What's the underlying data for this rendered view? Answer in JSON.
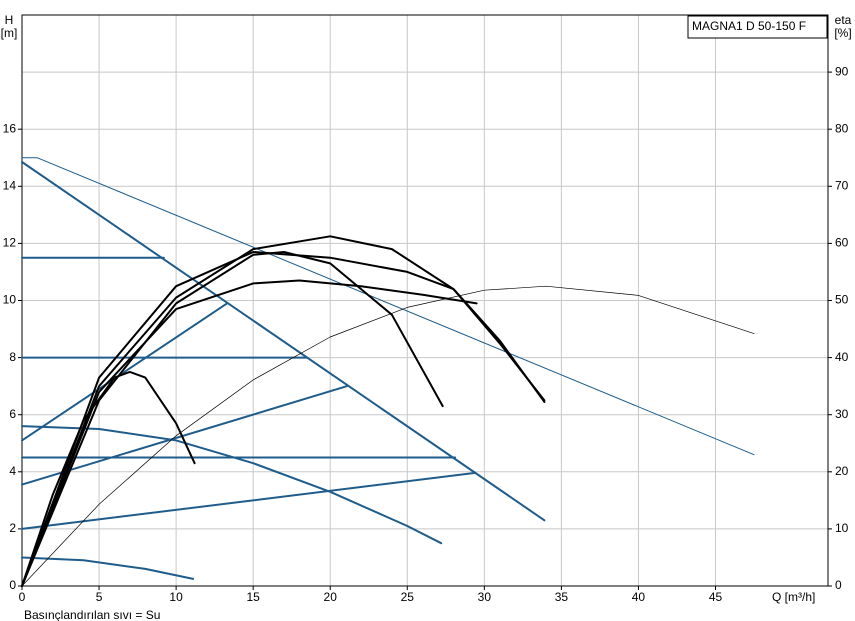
{
  "chart_data": {
    "type": "line",
    "title": "MAGNA1 D 50-150 F",
    "xlabel": "Q [m³/h]",
    "ylabel": [
      "H",
      "[m]"
    ],
    "y2label": [
      "eta",
      "[%]"
    ],
    "footnote": "Basınçlandırılan sıvı = Su",
    "xlim": [
      0,
      52.3
    ],
    "xticks": [
      0,
      5,
      10,
      15,
      20,
      25,
      30,
      35,
      40,
      45
    ],
    "ylim": [
      0,
      20
    ],
    "yticks": [
      0,
      2,
      4,
      6,
      8,
      10,
      12,
      14,
      16
    ],
    "y2lim": [
      0,
      100
    ],
    "y2ticks": [
      0,
      10,
      20,
      30,
      40,
      50,
      60,
      70,
      80,
      90
    ],
    "grid": true,
    "series": [
      {
        "color": "#1f5c8b",
        "linewidth": 2,
        "x": [
          0,
          33.9
        ],
        "values": [
          14.85,
          2.3
        ]
      },
      {
        "color": "#1f5c8b",
        "linewidth": 2,
        "x": [
          0,
          9.2
        ],
        "values": [
          11.5,
          11.5
        ]
      },
      {
        "color": "#1f5c8b",
        "linewidth": 2,
        "x": [
          0,
          18.5
        ],
        "values": [
          8,
          8
        ]
      },
      {
        "color": "#1f5c8b",
        "linewidth": 2,
        "x": [
          0,
          28.1
        ],
        "values": [
          4.5,
          4.5
        ]
      },
      {
        "color": "#1f5c8b",
        "linewidth": 2,
        "x": [
          0,
          13.3
        ],
        "values": [
          5.1,
          9.9
        ]
      },
      {
        "color": "#1f5c8b",
        "linewidth": 2,
        "x": [
          0,
          21.1
        ],
        "values": [
          3.55,
          7.0
        ]
      },
      {
        "color": "#1f5c8b",
        "linewidth": 2,
        "x": [
          0,
          29.4
        ],
        "values": [
          2.0,
          3.96
        ]
      },
      {
        "color": "#1f5c8b",
        "linewidth": 2,
        "x": [
          0,
          5,
          10,
          15,
          20,
          25,
          27.2
        ],
        "values": [
          5.6,
          5.5,
          5.1,
          4.3,
          3.3,
          2.1,
          1.5
        ]
      },
      {
        "color": "#1f5c8b",
        "linewidth": 2,
        "x": [
          0,
          4,
          8,
          11.1
        ],
        "values": [
          1.0,
          0.9,
          0.6,
          0.25
        ]
      },
      {
        "color": "#1f5c8b",
        "linewidth": 1,
        "x": [
          0,
          1,
          47.5
        ],
        "values": [
          15,
          15,
          4.6
        ]
      },
      {
        "color": "#000000",
        "linewidth": 0.7,
        "axis": "y2",
        "x": [
          0,
          5,
          10,
          15,
          20,
          25,
          30,
          34,
          40,
          47.5
        ],
        "values": [
          0,
          14.3,
          26.3,
          36.1,
          43.6,
          48.8,
          51.8,
          52.5,
          50.9,
          44.2
        ]
      },
      {
        "color": "#000000",
        "linewidth": 2,
        "x": [
          0,
          2,
          4,
          6,
          7,
          8,
          10,
          11.2
        ],
        "values": [
          0,
          3.2,
          5.8,
          7.3,
          7.5,
          7.3,
          5.7,
          4.3
        ]
      },
      {
        "color": "#000000",
        "linewidth": 2,
        "x": [
          0,
          5,
          10,
          15,
          17,
          20,
          24,
          27.3
        ],
        "values": [
          0,
          6.5,
          9.9,
          11.6,
          11.7,
          11.3,
          9.5,
          6.3
        ]
      },
      {
        "color": "#000000",
        "linewidth": 2,
        "x": [
          0,
          5,
          10,
          15,
          18,
          22,
          26,
          29.5
        ],
        "values": [
          0,
          6.8,
          9.7,
          10.6,
          10.7,
          10.5,
          10.2,
          9.9
        ]
      },
      {
        "color": "#000000",
        "linewidth": 2,
        "x": [
          0,
          5,
          10,
          15,
          20,
          24,
          28,
          31,
          33.9
        ],
        "values": [
          0,
          7.0,
          10.1,
          11.8,
          12.25,
          11.8,
          10.4,
          8.6,
          6.45
        ]
      },
      {
        "color": "#000000",
        "linewidth": 2,
        "x": [
          0,
          5,
          10,
          15,
          20,
          25,
          28,
          31,
          33.9
        ],
        "values": [
          0,
          7.3,
          10.5,
          11.7,
          11.5,
          11.0,
          10.4,
          8.5,
          6.5
        ]
      }
    ]
  }
}
